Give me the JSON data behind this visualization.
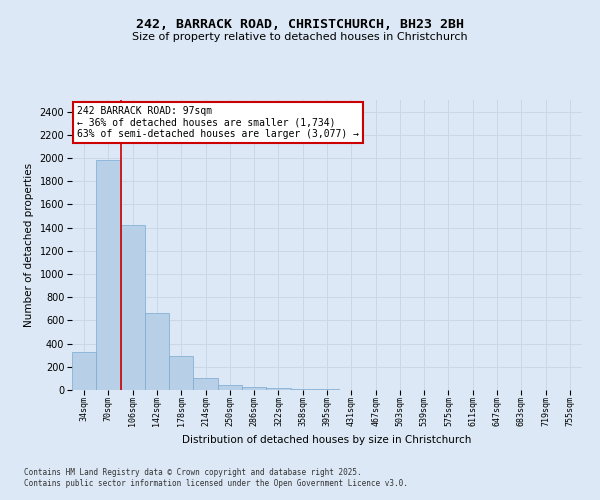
{
  "title_line1": "242, BARRACK ROAD, CHRISTCHURCH, BH23 2BH",
  "title_line2": "Size of property relative to detached houses in Christchurch",
  "xlabel": "Distribution of detached houses by size in Christchurch",
  "ylabel": "Number of detached properties",
  "bar_labels": [
    "34sqm",
    "70sqm",
    "106sqm",
    "142sqm",
    "178sqm",
    "214sqm",
    "250sqm",
    "286sqm",
    "322sqm",
    "358sqm",
    "395sqm",
    "431sqm",
    "467sqm",
    "503sqm",
    "539sqm",
    "575sqm",
    "611sqm",
    "647sqm",
    "683sqm",
    "719sqm",
    "755sqm"
  ],
  "bar_values": [
    325,
    1980,
    1425,
    660,
    290,
    105,
    40,
    28,
    18,
    10,
    5,
    3,
    2,
    1,
    1,
    0,
    0,
    0,
    0,
    0,
    0
  ],
  "bar_color": "#b8cfe8",
  "bar_edge_color": "#7aaad0",
  "annotation_text_line1": "242 BARRACK ROAD: 97sqm",
  "annotation_text_line2": "← 36% of detached houses are smaller (1,734)",
  "annotation_text_line3": "63% of semi-detached houses are larger (3,077) →",
  "annotation_box_color": "#ffffff",
  "annotation_box_edge": "#cc0000",
  "vline_color": "#cc0000",
  "ylim": [
    0,
    2500
  ],
  "yticks": [
    0,
    200,
    400,
    600,
    800,
    1000,
    1200,
    1400,
    1600,
    1800,
    2000,
    2200,
    2400
  ],
  "grid_color": "#c8d8e8",
  "bg_color": "#dce8f5",
  "fig_color": "#dce8f5",
  "footer_line1": "Contains HM Land Registry data © Crown copyright and database right 2025.",
  "footer_line2": "Contains public sector information licensed under the Open Government Licence v3.0."
}
